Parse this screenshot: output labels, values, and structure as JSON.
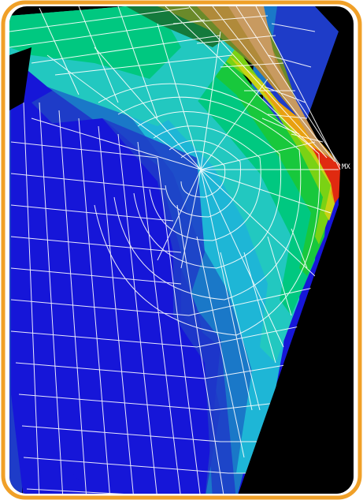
{
  "image": {
    "subject": "finite-element-stress-contour",
    "colors": {
      "frame_border": "#f0a028",
      "background": "#000000",
      "mesh_lines": "#ffffff",
      "contour_1": "#1616d8",
      "contour_2": "#1e3cc8",
      "contour_3": "#1a78c8",
      "contour_4": "#1eb6d6",
      "contour_5": "#22c8c0",
      "contour_6": "#00c880",
      "contour_7": "#18c83c",
      "contour_8": "#7ad214",
      "contour_9": "#c8d214",
      "contour_10": "#e8a010",
      "contour_11": "#e02a10"
    },
    "marker_label": "MX"
  }
}
